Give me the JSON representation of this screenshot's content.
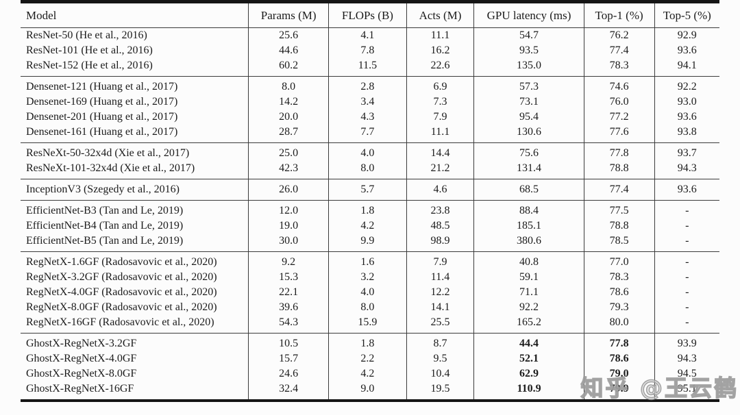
{
  "watermark": {
    "text": "知乎 @王云鹤"
  },
  "table": {
    "columns": [
      "Model",
      "Params (M)",
      "FLOPs (B)",
      "Acts (M)",
      "GPU latency (ms)",
      "Top-1 (%)",
      "Top-5 (%)"
    ],
    "groups": [
      {
        "rows": [
          {
            "model": "ResNet-50 (He et al., 2016)",
            "values": [
              "25.6",
              "4.1",
              "11.1",
              "54.7",
              "76.2",
              "92.9"
            ],
            "bold_cols": []
          },
          {
            "model": "ResNet-101 (He et al., 2016)",
            "values": [
              "44.6",
              "7.8",
              "16.2",
              "93.5",
              "77.4",
              "93.6"
            ],
            "bold_cols": []
          },
          {
            "model": "ResNet-152 (He et al., 2016)",
            "values": [
              "60.2",
              "11.5",
              "22.6",
              "135.0",
              "78.3",
              "94.1"
            ],
            "bold_cols": []
          }
        ]
      },
      {
        "rows": [
          {
            "model": "Densenet-121 (Huang et al., 2017)",
            "values": [
              "8.0",
              "2.8",
              "6.9",
              "57.3",
              "74.6",
              "92.2"
            ],
            "bold_cols": []
          },
          {
            "model": "Densenet-169 (Huang et al., 2017)",
            "values": [
              "14.2",
              "3.4",
              "7.3",
              "73.1",
              "76.0",
              "93.0"
            ],
            "bold_cols": []
          },
          {
            "model": "Densenet-201 (Huang et al., 2017)",
            "values": [
              "20.0",
              "4.3",
              "7.9",
              "95.4",
              "77.2",
              "93.6"
            ],
            "bold_cols": []
          },
          {
            "model": "Densenet-161 (Huang et al., 2017)",
            "values": [
              "28.7",
              "7.7",
              "11.1",
              "130.6",
              "77.6",
              "93.8"
            ],
            "bold_cols": []
          }
        ]
      },
      {
        "rows": [
          {
            "model": "ResNeXt-50-32x4d (Xie et al., 2017)",
            "values": [
              "25.0",
              "4.0",
              "14.4",
              "75.6",
              "77.8",
              "93.7"
            ],
            "bold_cols": []
          },
          {
            "model": "ResNeXt-101-32x4d (Xie et al., 2017)",
            "values": [
              "42.3",
              "8.0",
              "21.2",
              "131.4",
              "78.8",
              "94.3"
            ],
            "bold_cols": []
          }
        ]
      },
      {
        "rows": [
          {
            "model": "InceptionV3 (Szegedy et al., 2016)",
            "values": [
              "26.0",
              "5.7",
              "4.6",
              "68.5",
              "77.4",
              "93.6"
            ],
            "bold_cols": []
          }
        ]
      },
      {
        "rows": [
          {
            "model": "EfficientNet-B3 (Tan and Le, 2019)",
            "values": [
              "12.0",
              "1.8",
              "23.8",
              "88.4",
              "77.5",
              "-"
            ],
            "bold_cols": []
          },
          {
            "model": "EfficientNet-B4 (Tan and Le, 2019)",
            "values": [
              "19.0",
              "4.2",
              "48.5",
              "185.1",
              "78.8",
              "-"
            ],
            "bold_cols": []
          },
          {
            "model": "EfficientNet-B5 (Tan and Le, 2019)",
            "values": [
              "30.0",
              "9.9",
              "98.9",
              "380.6",
              "78.5",
              "-"
            ],
            "bold_cols": []
          }
        ]
      },
      {
        "rows": [
          {
            "model": "RegNetX-1.6GF (Radosavovic et al., 2020)",
            "values": [
              "9.2",
              "1.6",
              "7.9",
              "40.8",
              "77.0",
              "-"
            ],
            "bold_cols": []
          },
          {
            "model": "RegNetX-3.2GF (Radosavovic et al., 2020)",
            "values": [
              "15.3",
              "3.2",
              "11.4",
              "59.1",
              "78.3",
              "-"
            ],
            "bold_cols": []
          },
          {
            "model": "RegNetX-4.0GF (Radosavovic et al., 2020)",
            "values": [
              "22.1",
              "4.0",
              "12.2",
              "71.1",
              "78.6",
              "-"
            ],
            "bold_cols": []
          },
          {
            "model": "RegNetX-8.0GF (Radosavovic et al., 2020)",
            "values": [
              "39.6",
              "8.0",
              "14.1",
              "92.2",
              "79.3",
              "-"
            ],
            "bold_cols": []
          },
          {
            "model": "RegNetX-16GF (Radosavovic et al., 2020)",
            "values": [
              "54.3",
              "15.9",
              "25.5",
              "165.2",
              "80.0",
              "-"
            ],
            "bold_cols": []
          }
        ]
      },
      {
        "rows": [
          {
            "model": "GhostX-RegNetX-3.2GF",
            "values": [
              "10.5",
              "1.8",
              "8.7",
              "44.4",
              "77.8",
              "93.9"
            ],
            "bold_cols": [
              3,
              4
            ]
          },
          {
            "model": "GhostX-RegNetX-4.0GF",
            "values": [
              "15.7",
              "2.2",
              "9.5",
              "52.1",
              "78.6",
              "94.3"
            ],
            "bold_cols": [
              3,
              4
            ]
          },
          {
            "model": "GhostX-RegNetX-8.0GF",
            "values": [
              "24.6",
              "4.2",
              "10.4",
              "62.9",
              "79.0",
              "94.5"
            ],
            "bold_cols": [
              3,
              4
            ]
          },
          {
            "model": "GhostX-RegNetX-16GF",
            "values": [
              "32.4",
              "9.0",
              "19.5",
              "110.9",
              "79.9",
              "95.1"
            ],
            "bold_cols": [
              3,
              4
            ]
          }
        ]
      }
    ]
  },
  "colors": {
    "background": "#fcfcfc",
    "text": "#1b1b1b",
    "rule": "#3a3a3a",
    "thick_rule": "#151515",
    "watermark": "#bdbdbd"
  }
}
